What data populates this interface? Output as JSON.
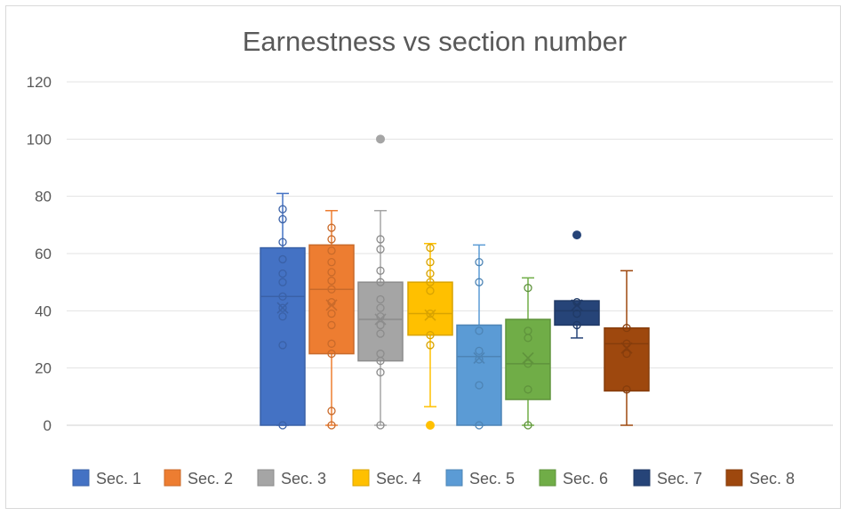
{
  "chart_data": {
    "type": "box",
    "title": "Earnestness vs section number",
    "xlabel": "",
    "ylabel": "",
    "ylim": [
      0,
      120
    ],
    "yticks": [
      0,
      20,
      40,
      60,
      80,
      100,
      120
    ],
    "grid": true,
    "legend_position": "bottom",
    "series": [
      {
        "name": "Sec. 1",
        "color": "#4472C4",
        "min": 0,
        "q1": 0,
        "median": 45,
        "q3": 62,
        "max": 81,
        "mean": 41,
        "points": [
          0,
          28,
          38,
          41,
          45,
          50,
          53,
          58,
          64,
          72,
          75.5
        ]
      },
      {
        "name": "Sec. 2",
        "color": "#ED7D31",
        "min": 0,
        "q1": 25,
        "median": 47.5,
        "q3": 63,
        "max": 75,
        "mean": 42,
        "points": [
          0,
          5,
          25,
          28.5,
          35,
          39,
          43,
          47.5,
          50.5,
          53.5,
          57,
          61,
          65,
          69
        ]
      },
      {
        "name": "Sec. 3",
        "color": "#A5A5A5",
        "min": 0,
        "q1": 22.5,
        "median": 37,
        "q3": 50,
        "max": 75,
        "mean": 37,
        "outliers": [
          100
        ],
        "points": [
          0,
          18.5,
          22.5,
          25,
          32,
          35,
          38,
          41,
          44,
          50,
          54,
          61.5,
          65
        ]
      },
      {
        "name": "Sec. 4",
        "color": "#FFC000",
        "min": 6.5,
        "q1": 31.5,
        "median": 39,
        "q3": 50,
        "max": 63.5,
        "mean": 38.5,
        "outliers": [
          0
        ],
        "points": [
          28,
          31.5,
          39,
          47,
          50,
          53,
          57,
          62
        ]
      },
      {
        "name": "Sec. 5",
        "color": "#5B9BD5",
        "min": 0,
        "q1": 0,
        "median": 24,
        "q3": 35,
        "max": 63,
        "mean": 23.5,
        "points": [
          0,
          14,
          23,
          26,
          33,
          50,
          57
        ]
      },
      {
        "name": "Sec. 6",
        "color": "#70AD47",
        "min": 0,
        "q1": 9,
        "median": 21.5,
        "q3": 37,
        "max": 51.5,
        "mean": 23.5,
        "points": [
          0,
          12.5,
          21.5,
          30.5,
          33,
          48
        ]
      },
      {
        "name": "Sec. 7",
        "color": "#264478",
        "min": 30.5,
        "q1": 35,
        "median": 40,
        "q3": 43.5,
        "max": 43.5,
        "mean": 42,
        "outliers": [
          66.5
        ],
        "points": [
          35,
          39,
          43
        ]
      },
      {
        "name": "Sec. 8",
        "color": "#9E480E",
        "min": 0,
        "q1": 12,
        "median": 28.5,
        "q3": 34,
        "max": 54,
        "mean": 27,
        "points": [
          12.5,
          25,
          28.5,
          34
        ]
      }
    ]
  }
}
